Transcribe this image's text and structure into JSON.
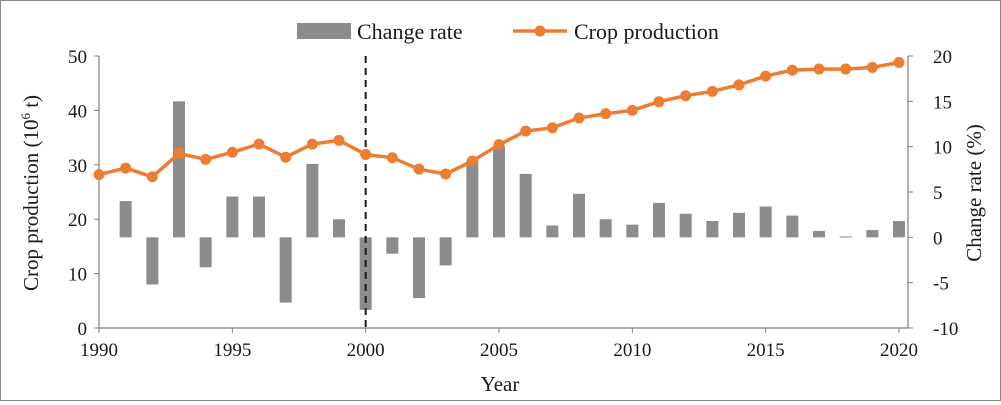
{
  "chart_data": {
    "type": "bar+line",
    "x_axis": {
      "label": "Year",
      "min": 1990,
      "max": 2020,
      "ticks": [
        1990,
        1995,
        2000,
        2005,
        2010,
        2015,
        2020
      ]
    },
    "y_left": {
      "label": "Crop production (10",
      "label_sup": "6",
      "label_end": " t)",
      "min": 0,
      "max": 50,
      "ticks": [
        0,
        10,
        20,
        30,
        40,
        50
      ]
    },
    "y_right": {
      "label": "Change rate (%)",
      "min": -10,
      "max": 20,
      "ticks": [
        -10,
        -5,
        0,
        5,
        10,
        15,
        20
      ]
    },
    "series": [
      {
        "name": "Change rate",
        "type": "bar",
        "axis": "right",
        "color": "#8c8c8c",
        "x": [
          1991,
          1992,
          1993,
          1994,
          1995,
          1996,
          1997,
          1998,
          1999,
          2000,
          2001,
          2002,
          2003,
          2004,
          2005,
          2006,
          2007,
          2008,
          2009,
          2010,
          2011,
          2012,
          2013,
          2014,
          2015,
          2016,
          2017,
          2018,
          2019,
          2020
        ],
        "values": [
          4.0,
          -5.2,
          15.0,
          -3.3,
          4.5,
          4.5,
          -7.2,
          8.1,
          2.0,
          -8.0,
          -1.8,
          -6.7,
          -3.1,
          8.5,
          10.0,
          7.0,
          1.3,
          4.8,
          2.0,
          1.4,
          3.8,
          2.6,
          1.8,
          2.7,
          3.4,
          2.4,
          0.7,
          0.1,
          0.8,
          1.8
        ]
      },
      {
        "name": "Crop production",
        "type": "line",
        "axis": "left",
        "color": "#ed7d31",
        "x": [
          1990,
          1991,
          1992,
          1993,
          1994,
          1995,
          1996,
          1997,
          1998,
          1999,
          2000,
          2001,
          2002,
          2003,
          2004,
          2005,
          2006,
          2007,
          2008,
          2009,
          2010,
          2011,
          2012,
          2013,
          2014,
          2015,
          2016,
          2017,
          2018,
          2019,
          2020
        ],
        "values": [
          28.2,
          29.4,
          27.8,
          32.1,
          31.0,
          32.3,
          33.8,
          31.4,
          33.8,
          34.5,
          31.9,
          31.3,
          29.2,
          28.3,
          30.7,
          33.7,
          36.2,
          36.8,
          38.6,
          39.4,
          40.0,
          41.6,
          42.7,
          43.5,
          44.7,
          46.3,
          47.4,
          47.6,
          47.6,
          47.9,
          48.8
        ]
      }
    ],
    "annotations": [
      {
        "type": "vertical-dashed-line",
        "x": 2000
      }
    ],
    "legend": {
      "position": "top-center",
      "items": [
        "Change rate",
        "Crop production"
      ]
    },
    "grid": false
  }
}
